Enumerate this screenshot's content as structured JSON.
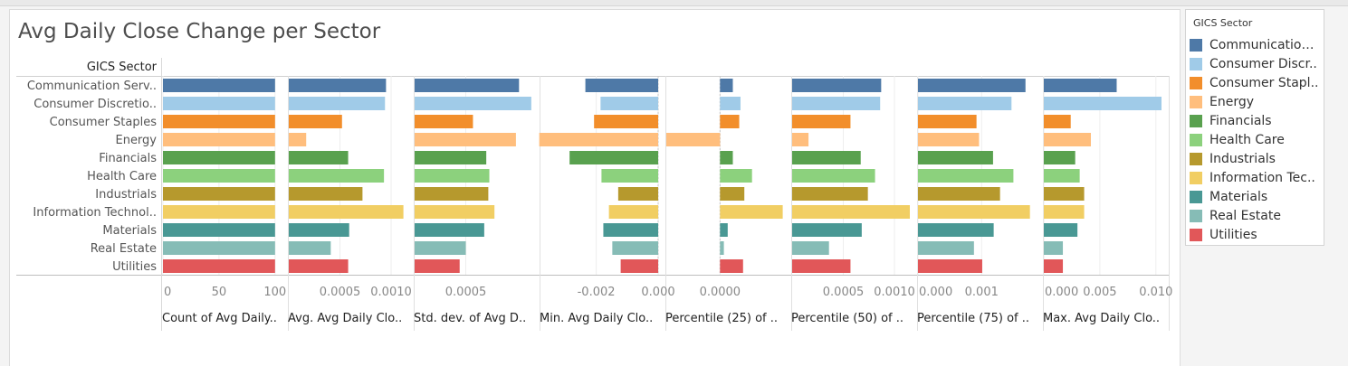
{
  "title": "Avg Daily Close Change per Sector",
  "row_header": "GICS Sector",
  "legend": {
    "title": "GICS Sector",
    "items": [
      {
        "label": "Communication ..",
        "color": "#4e79a7"
      },
      {
        "label": "Consumer Discr..",
        "color": "#a0cbe8"
      },
      {
        "label": "Consumer Stapl..",
        "color": "#f28e2b"
      },
      {
        "label": "Energy",
        "color": "#ffbe7d"
      },
      {
        "label": "Financials",
        "color": "#59a14f"
      },
      {
        "label": "Health Care",
        "color": "#8cd17d"
      },
      {
        "label": "Industrials",
        "color": "#b6992d"
      },
      {
        "label": "Information Tec..",
        "color": "#f1ce63"
      },
      {
        "label": "Materials",
        "color": "#499894"
      },
      {
        "label": "Real Estate",
        "color": "#86bcb6"
      },
      {
        "label": "Utilities",
        "color": "#e15759"
      }
    ]
  },
  "chart_data": {
    "type": "bar",
    "orientation": "horizontal",
    "categories": [
      "Communication Serv..",
      "Consumer Discretio..",
      "Consumer Staples",
      "Energy",
      "Financials",
      "Health Care",
      "Industrials",
      "Information Technol..",
      "Materials",
      "Real Estate",
      "Utilities"
    ],
    "colors": [
      "#4e79a7",
      "#a0cbe8",
      "#f28e2b",
      "#ffbe7d",
      "#59a14f",
      "#8cd17d",
      "#b6992d",
      "#f1ce63",
      "#499894",
      "#86bcb6",
      "#e15759"
    ],
    "panels": [
      {
        "label": "Count of Avg Daily..",
        "xlim": [
          0,
          105
        ],
        "ticks": [
          {
            "v": 0,
            "t": "0"
          },
          {
            "v": 50,
            "t": "50"
          },
          {
            "v": 100,
            "t": "100"
          }
        ],
        "values": [
          100,
          100,
          100,
          100,
          100,
          100,
          100,
          100,
          100,
          100,
          100
        ]
      },
      {
        "label": "Avg. Avg Daily Clo..",
        "xlim": [
          0,
          0.00115
        ],
        "ticks": [
          {
            "v": 0.0005,
            "t": "0.0005"
          },
          {
            "v": 0.001,
            "t": "0.0010"
          }
        ],
        "values": [
          0.00095,
          0.00094,
          0.00052,
          0.00017,
          0.00058,
          0.00093,
          0.00072,
          0.00112,
          0.00059,
          0.00041,
          0.00058
        ]
      },
      {
        "label": "Std. dev. of Avg D..",
        "xlim": [
          0,
          0.00115
        ],
        "ticks": [
          {
            "v": 0.0005,
            "t": "0.0005"
          }
        ],
        "values": [
          0.00102,
          0.00114,
          0.00057,
          0.00099,
          0.0007,
          0.00073,
          0.00072,
          0.00078,
          0.00068,
          0.0005,
          0.00044
        ]
      },
      {
        "label": "Min. Avg Daily Clo..",
        "xlim": [
          -0.0038,
          0
        ],
        "ticks": [
          {
            "v": -0.002,
            "t": "-0.002"
          },
          {
            "v": 0,
            "t": "0.000"
          }
        ],
        "values": [
          -0.00235,
          -0.00186,
          -0.00207,
          -0.00384,
          -0.00286,
          -0.00183,
          -0.00129,
          -0.00159,
          -0.00177,
          -0.00148,
          -0.00121
        ]
      },
      {
        "label": "Percentile (25) of ..",
        "xlim": [
          -0.00042,
          0.0005
        ],
        "ticks": [
          {
            "v": 0,
            "t": "0.0000"
          }
        ],
        "values": [
          0.0001,
          0.00016,
          0.00015,
          -0.00042,
          0.0001,
          0.00025,
          0.00019,
          0.00049,
          6e-05,
          3e-05,
          0.00018
        ]
      },
      {
        "label": "Percentile (50) of ..",
        "xlim": [
          0,
          0.00115
        ],
        "ticks": [
          {
            "v": 0.0005,
            "t": "0.0005"
          },
          {
            "v": 0.001,
            "t": "0.0010"
          }
        ],
        "values": [
          0.00087,
          0.00086,
          0.00057,
          0.00016,
          0.00067,
          0.00081,
          0.00074,
          0.00115,
          0.00068,
          0.00036,
          0.00057
        ]
      },
      {
        "label": "Percentile (75) of ..",
        "xlim": [
          0,
          0.00185
        ],
        "ticks": [
          {
            "v": 0,
            "t": "0.000"
          },
          {
            "v": 0.001,
            "t": "0.001"
          }
        ],
        "values": [
          0.00169,
          0.00147,
          0.00092,
          0.00096,
          0.00118,
          0.0015,
          0.00129,
          0.00176,
          0.00119,
          0.00088,
          0.00101
        ]
      },
      {
        "label": "Max. Avg Daily Clo..",
        "xlim": [
          0,
          0.0105
        ],
        "ticks": [
          {
            "v": 0,
            "t": "0.000"
          },
          {
            "v": 0.005,
            "t": "0.005"
          },
          {
            "v": 0.01,
            "t": "0.010"
          }
        ],
        "values": [
          0.0065,
          0.0105,
          0.0024,
          0.0042,
          0.0028,
          0.0032,
          0.0036,
          0.0036,
          0.003,
          0.0017,
          0.0017
        ]
      }
    ]
  }
}
